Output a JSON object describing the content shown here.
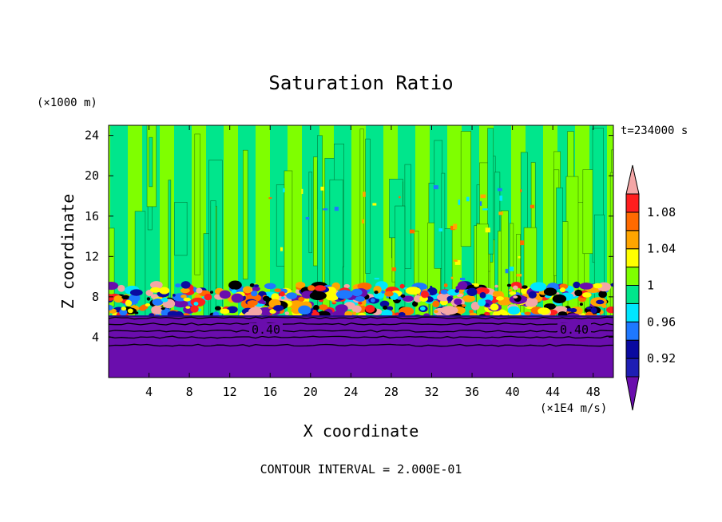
{
  "chart_data": {
    "type": "heatmap",
    "title": "Saturation Ratio",
    "xlabel": "X coordinate",
    "ylabel": "Z coordinate",
    "x_unit": "(×1E4 m/s)",
    "y_unit": "(×1000 m)",
    "time_label": "t=234000 s",
    "footer": "CONTOUR INTERVAL = 2.000E-01",
    "xlim": [
      0,
      50
    ],
    "ylim": [
      0,
      25
    ],
    "x_ticks": [
      "4",
      "8",
      "12",
      "16",
      "20",
      "24",
      "28",
      "32",
      "36",
      "40",
      "44",
      "48"
    ],
    "y_ticks": [
      "4",
      "8",
      "12",
      "16",
      "20",
      "24"
    ],
    "colorbar": {
      "levels": [
        0.9,
        0.92,
        0.94,
        0.96,
        0.98,
        1.0,
        1.02,
        1.04,
        1.06,
        1.08,
        1.1
      ],
      "tick_labels": [
        "0.92",
        "0.96",
        "1",
        "1.04",
        "1.08"
      ],
      "tick_values": [
        0.92,
        0.96,
        1.0,
        1.04,
        1.08
      ],
      "colors": [
        "#6a0dad",
        "#1e1eb4",
        "#0a0aa0",
        "#1e78ff",
        "#00e6ff",
        "#00e68c",
        "#7fff00",
        "#ffff00",
        "#ffa500",
        "#ff6a00",
        "#ff1e1e",
        "#f4a6a6"
      ],
      "extend": "both"
    },
    "contour_labels": [
      "0.40",
      "0.40"
    ],
    "regions": [
      {
        "name": "dry lower layer",
        "z_range": [
          0,
          6
        ],
        "value_approx": 0.4
      },
      {
        "name": "near-saturated upper layer",
        "z_range": [
          6,
          25
        ],
        "value_approx": 1.0
      }
    ]
  }
}
